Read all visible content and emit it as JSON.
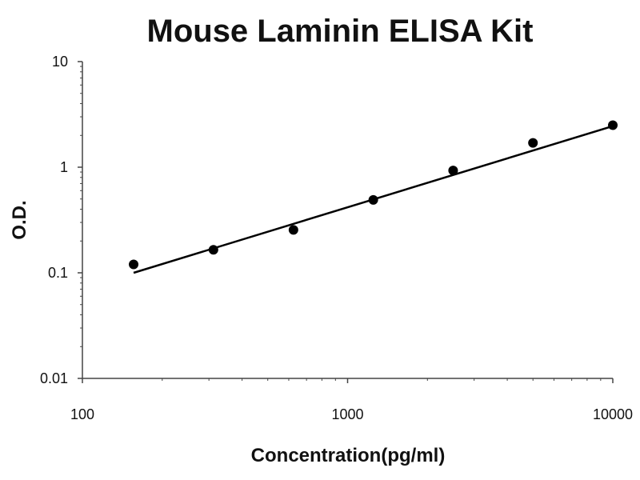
{
  "chart_data": {
    "type": "scatter",
    "title": "Mouse Laminin ELISA Kit",
    "xlabel": "Concentration(pg/ml)",
    "ylabel": "O.D.",
    "x_scale": "log",
    "y_scale": "log",
    "xlim": [
      100,
      10000
    ],
    "ylim": [
      0.01,
      10
    ],
    "x_ticks": [
      "100",
      "1000",
      "10000"
    ],
    "x_tick_values": [
      100,
      1000,
      10000
    ],
    "y_ticks": [
      "10",
      "1",
      "0.1",
      "0.01"
    ],
    "y_tick_values": [
      10,
      1,
      0.1,
      0.01
    ],
    "grid": false,
    "series": [
      {
        "points": [
          {
            "x": 156,
            "y": 0.12
          },
          {
            "x": 312,
            "y": 0.165
          },
          {
            "x": 625,
            "y": 0.255
          },
          {
            "x": 1250,
            "y": 0.49
          },
          {
            "x": 2500,
            "y": 0.93
          },
          {
            "x": 5000,
            "y": 1.7
          },
          {
            "x": 10000,
            "y": 2.5
          }
        ],
        "color": "#000000"
      }
    ],
    "fit_line": {
      "type": "power",
      "from": {
        "x": 156,
        "y": 0.1
      },
      "to": {
        "x": 10000,
        "y": 2.45
      },
      "color": "#000000"
    }
  }
}
